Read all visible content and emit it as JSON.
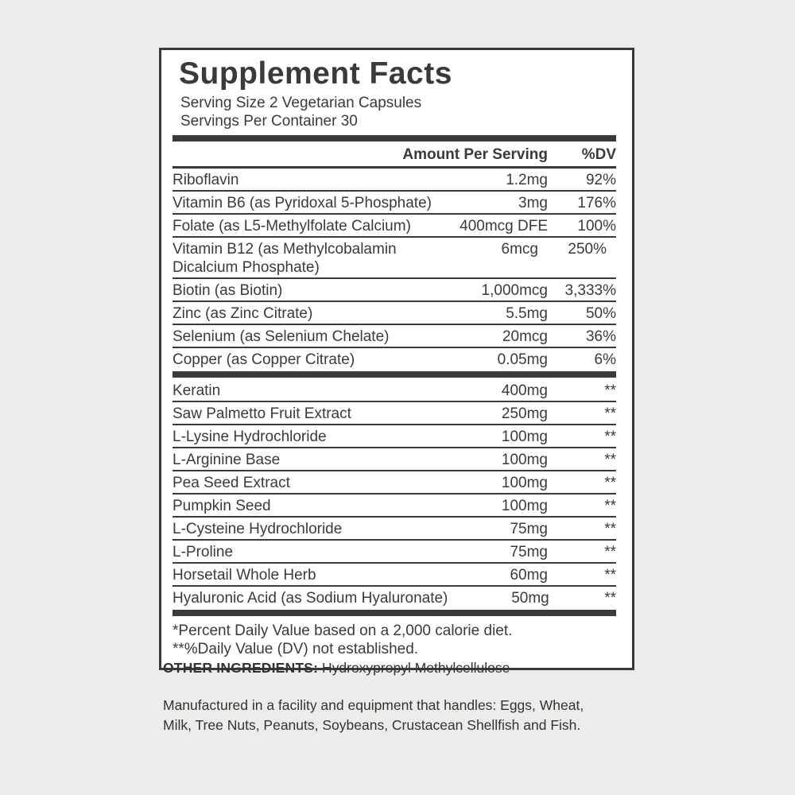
{
  "colors": {
    "background": "#ececeb",
    "panel_background": "#ffffff",
    "ink": "#3a3a37"
  },
  "panel": {
    "title": "Supplement Facts",
    "serving_size": "Serving Size 2 Vegetarian Capsules",
    "servings_per_container": "Servings Per Container 30",
    "header": {
      "amount": "Amount Per Serving",
      "dv": "%DV"
    },
    "section1": [
      {
        "name": "Riboflavin",
        "amount": "1.2mg",
        "dv": "92%"
      },
      {
        "name": "Vitamin B6 (as Pyridoxal 5-Phosphate)",
        "amount": "3mg",
        "dv": "176%"
      },
      {
        "name": "Folate (as L5-Methylfolate Calcium)",
        "amount": "400mcg DFE",
        "dv": "100%"
      },
      {
        "name": "Vitamin B12 (as Methylcobalamin Dicalcium Phosphate)",
        "amount": "6mcg",
        "dv": "250%"
      },
      {
        "name": "Biotin (as Biotin)",
        "amount": "1,000mcg",
        "dv": "3,333%"
      },
      {
        "name": "Zinc (as Zinc Citrate)",
        "amount": "5.5mg",
        "dv": "50%"
      },
      {
        "name": "Selenium (as Selenium Chelate)",
        "amount": "20mcg",
        "dv": "36%"
      },
      {
        "name": "Copper (as Copper Citrate)",
        "amount": "0.05mg",
        "dv": "6%"
      }
    ],
    "section2": [
      {
        "name": "Keratin",
        "amount": "400mg",
        "dv": "**"
      },
      {
        "name": "Saw Palmetto Fruit Extract",
        "amount": "250mg",
        "dv": "**"
      },
      {
        "name": "L-Lysine Hydrochloride",
        "amount": "100mg",
        "dv": "**"
      },
      {
        "name": "L-Arginine Base",
        "amount": "100mg",
        "dv": "**"
      },
      {
        "name": "Pea Seed Extract",
        "amount": "100mg",
        "dv": "**"
      },
      {
        "name": "Pumpkin Seed",
        "amount": "100mg",
        "dv": "**"
      },
      {
        "name": "L-Cysteine Hydrochloride",
        "amount": "75mg",
        "dv": "**"
      },
      {
        "name": "L-Proline",
        "amount": "75mg",
        "dv": "**"
      },
      {
        "name": "Horsetail Whole Herb",
        "amount": "60mg",
        "dv": "**"
      },
      {
        "name": "Hyaluronic Acid (as Sodium Hyaluronate)",
        "amount": "50mg",
        "dv": "**"
      }
    ],
    "footnotes": [
      "*Percent Daily Value based on a 2,000 calorie diet.",
      "**%Daily Value (DV) not established."
    ]
  },
  "below": {
    "other_ingredients_label": "OTHER INGREDIENTS:",
    "other_ingredients_value": " Hydroxypropyl Methylcellulose",
    "allergen_notice": "Manufactured in a facility and equipment that handles: Eggs, Wheat, Milk, Tree Nuts, Peanuts, Soybeans, Crustacean Shellfish and Fish."
  }
}
